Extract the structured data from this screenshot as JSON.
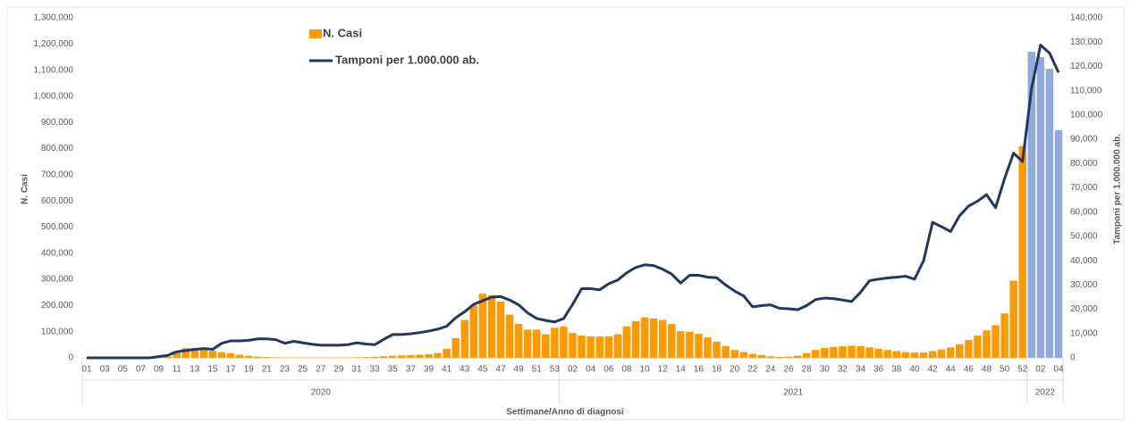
{
  "chart_data": {
    "type": "bar",
    "y_label": "N. Casi",
    "y2_label": "Tamponi per 1.000.000 ab.",
    "x_label": "Settimane/Anno di diagnosi",
    "categories": [
      "01",
      null,
      "03",
      null,
      "05",
      null,
      "07",
      null,
      "09",
      null,
      "11",
      null,
      "13",
      null,
      "15",
      null,
      "17",
      null,
      "19",
      null,
      "21",
      null,
      "23",
      null,
      "25",
      null,
      "27",
      null,
      "29",
      null,
      "31",
      null,
      "33",
      null,
      "35",
      null,
      "37",
      null,
      "39",
      null,
      "41",
      null,
      "43",
      null,
      "45",
      null,
      "47",
      null,
      "49",
      null,
      "51",
      null,
      "53",
      null,
      "02",
      null,
      "04",
      null,
      "06",
      null,
      "08",
      null,
      "10",
      null,
      "12",
      null,
      "14",
      null,
      "16",
      null,
      "18",
      null,
      "20",
      null,
      "22",
      null,
      "24",
      null,
      "26",
      null,
      "28",
      null,
      "30",
      null,
      "32",
      null,
      "34",
      null,
      "36",
      null,
      "38",
      null,
      "40",
      null,
      "42",
      null,
      "44",
      null,
      "46",
      null,
      "48",
      null,
      "50",
      null,
      "52",
      null,
      "02",
      null,
      "04"
    ],
    "x_groups": [
      {
        "label": "2020",
        "count": 53
      },
      {
        "label": "2021",
        "count": 52
      },
      {
        "label": "2022",
        "count": 4,
        "bar_color": "#8faadc"
      }
    ],
    "series": [
      {
        "name": "N. Casi",
        "color": "#ff9900",
        "values": [
          0,
          0,
          0,
          0,
          0,
          0,
          0,
          0,
          0,
          5000,
          25000,
          37000,
          37000,
          33000,
          27000,
          22000,
          18000,
          12000,
          8000,
          5000,
          3000,
          2000,
          1500,
          1500,
          1500,
          1500,
          1500,
          1500,
          1500,
          1500,
          2000,
          3000,
          4000,
          6000,
          8000,
          9000,
          10000,
          12000,
          14000,
          18000,
          35000,
          75000,
          145000,
          200000,
          245000,
          240000,
          215000,
          165000,
          130000,
          108000,
          108000,
          90000,
          115000,
          120000,
          95000,
          85000,
          82000,
          82000,
          82000,
          90000,
          120000,
          140000,
          155000,
          150000,
          145000,
          130000,
          102000,
          100000,
          92000,
          78000,
          62000,
          45000,
          30000,
          22000,
          15000,
          10000,
          6000,
          4000,
          5000,
          8000,
          18000,
          30000,
          38000,
          42000,
          44000,
          46000,
          45000,
          40000,
          35000,
          30000,
          26000,
          22000,
          20000,
          20000,
          26000,
          32000,
          40000,
          52000,
          68000,
          85000,
          105000,
          125000,
          170000,
          295000,
          810000,
          1170000,
          1150000,
          1105000,
          870000
        ]
      },
      {
        "name": "Tamponi per 1.000.000 ab.",
        "type": "line",
        "axis": "y2",
        "color": "#1f3864",
        "values": [
          0,
          0,
          0,
          0,
          0,
          0,
          0,
          0,
          500,
          1000,
          2500,
          3000,
          3500,
          3800,
          3500,
          6000,
          7000,
          7000,
          7200,
          7800,
          7800,
          7500,
          6000,
          6800,
          6200,
          5600,
          5200,
          5200,
          5200,
          5400,
          6200,
          5700,
          5400,
          7600,
          9600,
          9600,
          9900,
          10400,
          11000,
          11800,
          13000,
          16500,
          19000,
          22000,
          23500,
          25000,
          25200,
          23800,
          21800,
          18500,
          16200,
          15400,
          14800,
          16200,
          22000,
          28500,
          28500,
          28000,
          30500,
          32000,
          35000,
          37200,
          38300,
          38000,
          36500,
          34500,
          30800,
          34000,
          34000,
          33200,
          33000,
          30000,
          27500,
          25500,
          21000,
          21500,
          21800,
          20400,
          20200,
          19800,
          21500,
          24000,
          24600,
          24400,
          23800,
          23200,
          27000,
          31800,
          32400,
          32900,
          33200,
          33600,
          32400,
          40000,
          55800,
          54000,
          52000,
          58500,
          62500,
          64500,
          67200,
          61800,
          73800,
          84300,
          80800,
          111000,
          128800,
          125500,
          117500
        ]
      }
    ],
    "ylim": [
      0,
      1300000
    ],
    "yticks": [
      0,
      {
        "value": 100000,
        "label": "100,000"
      },
      {
        "value": 200000,
        "label": "200,000"
      },
      {
        "value": 300000,
        "label": "300,000"
      },
      {
        "value": 400000,
        "label": "400,000"
      },
      {
        "value": 500000,
        "label": "500,000"
      },
      {
        "value": 600000,
        "label": "600,000"
      },
      {
        "value": 700000,
        "label": "700,000"
      },
      {
        "value": 800000,
        "label": "800,000"
      },
      {
        "value": 900000,
        "label": "900,000"
      },
      {
        "value": 1000000,
        "label": "1,000,000"
      },
      {
        "value": 1100000,
        "label": "1,100,000"
      },
      {
        "value": 1200000,
        "label": "1,200,000"
      },
      {
        "value": 1300000,
        "label": "1,300,000"
      }
    ],
    "y2lim": [
      0,
      140000
    ],
    "y2ticks": [
      0,
      {
        "value": 10000,
        "label": "10,000"
      },
      {
        "value": 20000,
        "label": "20,000"
      },
      {
        "value": 30000,
        "label": "30,000"
      },
      {
        "value": 40000,
        "label": "40,000"
      },
      {
        "value": 50000,
        "label": "50,000"
      },
      {
        "value": 60000,
        "label": "60,000"
      },
      {
        "value": 70000,
        "label": "70,000"
      },
      {
        "value": 80000,
        "label": "80,000"
      },
      {
        "value": 90000,
        "label": "90,000"
      },
      {
        "value": 100000,
        "label": "100,000"
      },
      {
        "value": 110000,
        "label": "110,000"
      },
      {
        "value": 120000,
        "label": "120,000"
      },
      {
        "value": 130000,
        "label": "130,000"
      },
      {
        "value": 140000,
        "label": "140,000"
      }
    ],
    "grid": false
  }
}
